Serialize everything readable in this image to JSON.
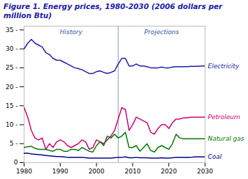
{
  "chart_data": {
    "type": "line",
    "title": "Figure 1. Energy prices, 1980-2030 (2006 dollars per",
    "subtitle": "million Btu)",
    "x": [
      1980,
      1981,
      1982,
      1983,
      1984,
      1985,
      1986,
      1987,
      1988,
      1989,
      1990,
      1991,
      1992,
      1993,
      1994,
      1995,
      1996,
      1997,
      1998,
      1999,
      2000,
      2001,
      2002,
      2003,
      2004,
      2005,
      2006,
      2007,
      2008,
      2009,
      2010,
      2011,
      2012,
      2013,
      2014,
      2015,
      2016,
      2017,
      2018,
      2019,
      2020,
      2021,
      2022,
      2023,
      2024,
      2025,
      2026,
      2027,
      2028,
      2029,
      2030
    ],
    "series": [
      {
        "name": "Electricity",
        "color": "#1a1aaa",
        "values": [
          30.0,
          31.5,
          32.5,
          31.5,
          31.0,
          30.5,
          29.0,
          28.5,
          27.5,
          27.0,
          27.0,
          26.5,
          26.0,
          25.5,
          25.0,
          24.8,
          24.5,
          24.0,
          23.5,
          23.5,
          24.0,
          24.2,
          23.8,
          23.5,
          23.8,
          24.2,
          26.0,
          27.5,
          27.5,
          25.5,
          25.5,
          26.0,
          25.5,
          25.5,
          25.3,
          25.0,
          25.0,
          25.0,
          25.2,
          25.0,
          25.0,
          25.2,
          25.3,
          25.3,
          25.3,
          25.3,
          25.4,
          25.4,
          25.4,
          25.5,
          25.5
        ]
      },
      {
        "name": "Petroleum",
        "color": "#cc0077",
        "values": [
          14.5,
          12.0,
          8.5,
          6.5,
          6.0,
          6.5,
          3.5,
          5.0,
          4.0,
          5.5,
          6.0,
          5.5,
          4.5,
          4.0,
          4.5,
          5.0,
          6.0,
          5.5,
          3.5,
          4.0,
          6.0,
          5.5,
          5.0,
          6.0,
          7.0,
          8.5,
          11.5,
          14.5,
          14.0,
          8.5,
          10.0,
          12.0,
          11.5,
          11.0,
          10.5,
          8.0,
          7.5,
          9.0,
          10.0,
          10.0,
          9.0,
          10.5,
          11.5,
          11.5,
          11.8,
          11.8,
          12.0,
          12.0,
          12.0,
          12.0,
          12.0
        ]
      },
      {
        "name": "Natural gas",
        "color": "#007700",
        "values": [
          4.0,
          4.2,
          4.3,
          3.8,
          3.5,
          3.5,
          3.5,
          3.2,
          3.0,
          3.5,
          3.5,
          3.0,
          3.0,
          3.5,
          3.5,
          3.2,
          4.0,
          3.5,
          3.0,
          2.8,
          4.5,
          5.5,
          4.5,
          7.0,
          6.5,
          7.5,
          6.5,
          7.0,
          8.0,
          4.0,
          4.0,
          4.5,
          3.0,
          4.0,
          5.0,
          3.2,
          2.8,
          4.0,
          4.5,
          4.0,
          3.5,
          5.0,
          7.5,
          6.5,
          6.3,
          6.3,
          6.3,
          6.3,
          6.3,
          6.3,
          6.3
        ]
      },
      {
        "name": "Coal",
        "color": "#000088",
        "values": [
          2.5,
          2.5,
          2.3,
          2.2,
          2.1,
          2.0,
          1.9,
          1.8,
          1.7,
          1.6,
          1.6,
          1.5,
          1.4,
          1.4,
          1.4,
          1.4,
          1.4,
          1.3,
          1.2,
          1.2,
          1.2,
          1.2,
          1.2,
          1.2,
          1.2,
          1.3,
          1.4,
          1.4,
          1.5,
          1.3,
          1.3,
          1.4,
          1.3,
          1.3,
          1.3,
          1.2,
          1.2,
          1.2,
          1.3,
          1.2,
          1.2,
          1.3,
          1.4,
          1.4,
          1.4,
          1.4,
          1.4,
          1.5,
          1.5,
          1.5,
          1.5
        ]
      }
    ],
    "xlim": [
      1980,
      2030
    ],
    "ylim": [
      0,
      36
    ],
    "xticks": [
      1980,
      1990,
      2000,
      2010,
      2020,
      2030
    ],
    "yticks": [
      0,
      {
        "value": 5,
        "label": "5 -"
      },
      {
        "value": 10,
        "label": "10 -"
      },
      {
        "value": 15,
        "label": "15 -"
      },
      {
        "value": 20,
        "label": "20 -"
      },
      {
        "value": 25,
        "label": "25 -"
      },
      {
        "value": 30,
        "label": "30 -"
      },
      {
        "value": 35,
        "label": "35 -"
      }
    ],
    "vline_x": 2006,
    "annotations": [
      {
        "text": "History",
        "x": 1993,
        "y": 35
      },
      {
        "text": "Projections",
        "x": 2018,
        "y": 35
      }
    ],
    "grid": false
  }
}
